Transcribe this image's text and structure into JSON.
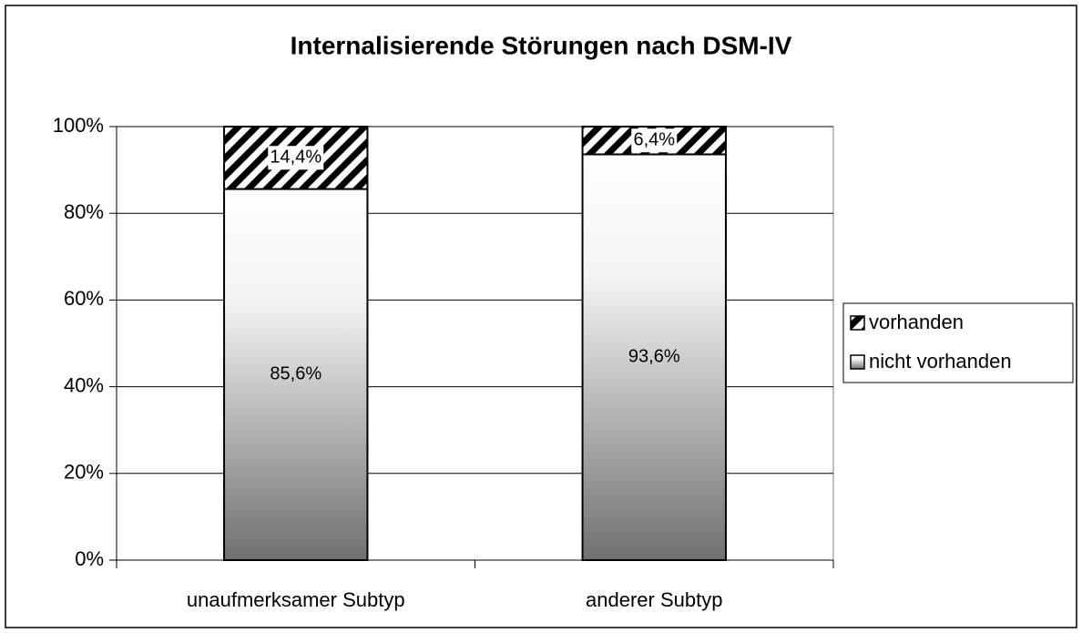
{
  "chart_data": {
    "type": "stacked-bar",
    "title": "Internalisierende Störungen nach DSM-IV",
    "categories": [
      "unaufmerksamer Subtyp",
      "anderer Subtyp"
    ],
    "series": [
      {
        "name": "nicht vorhanden",
        "color": "#707070",
        "fill": "gradient",
        "values": [
          85.6,
          93.6
        ],
        "value_labels": [
          "85,6%",
          "93,6%"
        ]
      },
      {
        "name": "vorhanden",
        "color": "#000000",
        "fill": "hatch",
        "values": [
          14.4,
          6.4
        ],
        "value_labels": [
          "14,4%",
          "6,4%"
        ]
      }
    ],
    "ylim": [
      0,
      100
    ],
    "yticks": [
      {
        "value": 0,
        "label": "0%"
      },
      {
        "value": 20,
        "label": "20%"
      },
      {
        "value": 40,
        "label": "40%"
      },
      {
        "value": 60,
        "label": "60%"
      },
      {
        "value": 80,
        "label": "80%"
      },
      {
        "value": 100,
        "label": "100%"
      }
    ],
    "grid": true,
    "legend": "right"
  }
}
